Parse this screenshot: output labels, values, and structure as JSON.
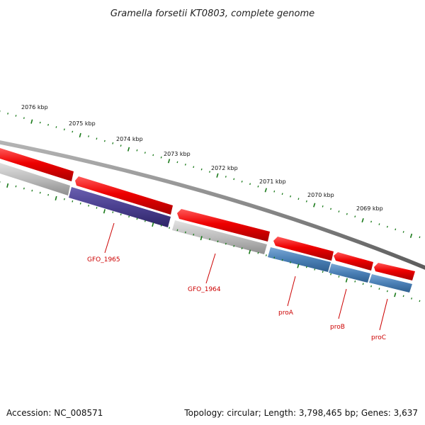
{
  "title": "Gramella forsetii KT0803, complete genome",
  "footer": {
    "accession": "Accession: NC_008571",
    "summary": "Topology: circular; Length: 3,798,465 bp; Genes: 3,637"
  },
  "scale": {
    "tick_color": "#1a7a1a",
    "labels": [
      "2076 kbp",
      "2075 kbp",
      "2074 kbp",
      "2073 kbp",
      "2072 kbp",
      "2071 kbp",
      "2070 kbp",
      "2069 kbp"
    ]
  },
  "colors": {
    "backbone": "#888888",
    "forward_cds": "#ee0000",
    "reverse_cds": "#4a7fb5",
    "reverse_other": "#4a3f8f",
    "untitled": "#bbbbbb"
  },
  "genes": [
    {
      "name": "GFO_1965",
      "color": "reverse_other"
    },
    {
      "name": "GFO_1964",
      "color": "untitled"
    },
    {
      "name": "proA",
      "color": "reverse_cds"
    },
    {
      "name": "proB",
      "color": "reverse_cds"
    },
    {
      "name": "proC",
      "color": "reverse_cds"
    }
  ]
}
